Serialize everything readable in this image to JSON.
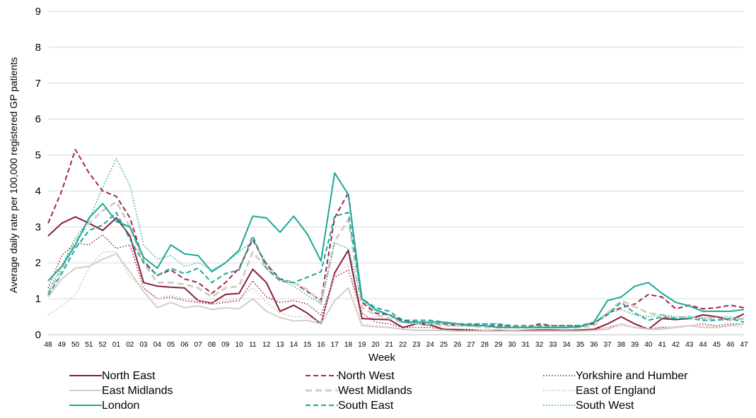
{
  "chart_data": {
    "type": "line",
    "title": "",
    "xlabel": "Week",
    "ylabel": "Average daily rate per 100,000 registered GP patients",
    "ylim": [
      0,
      9
    ],
    "yticks": [
      "0",
      "1",
      "2",
      "3",
      "4",
      "5",
      "6",
      "7",
      "8",
      "9"
    ],
    "grid": "horizontal",
    "legend_position": "bottom",
    "categories": [
      "48",
      "49",
      "50",
      "51",
      "52",
      "01",
      "02",
      "03",
      "04",
      "05",
      "06",
      "07",
      "08",
      "09",
      "10",
      "11",
      "12",
      "13",
      "14",
      "15",
      "16",
      "17",
      "18",
      "19",
      "20",
      "21",
      "22",
      "23",
      "24",
      "25",
      "26",
      "27",
      "28",
      "29",
      "30",
      "31",
      "32",
      "33",
      "34",
      "35",
      "36",
      "37",
      "38",
      "39",
      "40",
      "41",
      "42",
      "43",
      "44",
      "45",
      "46",
      "47"
    ],
    "series": [
      {
        "name": "North East",
        "color": "#8b1a3c",
        "width": 2,
        "dash": "",
        "values": [
          2.75,
          3.1,
          3.28,
          3.1,
          2.9,
          3.25,
          2.75,
          1.45,
          1.35,
          1.32,
          1.3,
          0.95,
          0.88,
          1.12,
          1.15,
          1.82,
          1.45,
          0.65,
          0.82,
          0.6,
          0.3,
          1.72,
          2.35,
          0.45,
          0.43,
          0.42,
          0.2,
          0.3,
          0.27,
          0.15,
          0.14,
          0.12,
          0.1,
          0.12,
          0.1,
          0.12,
          0.13,
          0.13,
          0.12,
          0.13,
          0.15,
          0.3,
          0.5,
          0.3,
          0.15,
          0.45,
          0.42,
          0.45,
          0.55,
          0.5,
          0.4,
          0.58
        ]
      },
      {
        "name": "North West",
        "color": "#a3274e",
        "width": 2,
        "dash": "7,4",
        "values": [
          3.1,
          4.0,
          5.15,
          4.5,
          4.0,
          3.85,
          3.25,
          2.05,
          1.65,
          1.8,
          1.55,
          1.45,
          1.15,
          1.45,
          1.85,
          2.65,
          1.95,
          1.55,
          1.45,
          1.2,
          0.95,
          3.25,
          3.95,
          0.9,
          0.6,
          0.55,
          0.4,
          0.35,
          0.3,
          0.3,
          0.25,
          0.28,
          0.25,
          0.25,
          0.22,
          0.2,
          0.3,
          0.25,
          0.25,
          0.25,
          0.3,
          0.6,
          0.75,
          0.85,
          1.12,
          1.05,
          0.72,
          0.82,
          0.72,
          0.75,
          0.82,
          0.75
        ]
      },
      {
        "name": "Yorkshire and Humber",
        "color": "#8b1a3c",
        "width": 1.5,
        "dash": "1.5,2.5",
        "values": [
          1.3,
          2.2,
          2.55,
          2.5,
          2.78,
          2.4,
          2.5,
          1.3,
          1.0,
          1.05,
          0.95,
          0.9,
          0.85,
          0.9,
          0.95,
          1.5,
          1.05,
          0.9,
          0.95,
          0.85,
          0.55,
          1.6,
          1.8,
          0.6,
          0.35,
          0.3,
          0.2,
          0.2,
          0.2,
          0.15,
          0.15,
          0.15,
          0.12,
          0.12,
          0.12,
          0.12,
          0.12,
          0.13,
          0.12,
          0.13,
          0.15,
          0.2,
          0.3,
          0.2,
          0.15,
          0.2,
          0.22,
          0.25,
          0.3,
          0.25,
          0.3,
          0.3
        ]
      },
      {
        "name": "East Midlands",
        "color": "#d4cfc2",
        "width": 2,
        "dash": "",
        "values": [
          1.05,
          1.55,
          1.85,
          1.9,
          2.1,
          2.25,
          1.75,
          1.2,
          0.75,
          0.9,
          0.75,
          0.8,
          0.7,
          0.75,
          0.72,
          1.0,
          0.65,
          0.48,
          0.38,
          0.4,
          0.3,
          0.95,
          1.3,
          0.25,
          0.22,
          0.2,
          0.15,
          0.12,
          0.12,
          0.12,
          0.1,
          0.1,
          0.1,
          0.1,
          0.1,
          0.1,
          0.1,
          0.1,
          0.1,
          0.1,
          0.12,
          0.15,
          0.3,
          0.2,
          0.15,
          0.15,
          0.2,
          0.25,
          0.2,
          0.2,
          0.25,
          0.3
        ]
      },
      {
        "name": "West Midlands",
        "color": "#d4cfc2",
        "width": 3,
        "dash": "9,5",
        "values": [
          1.15,
          1.8,
          2.6,
          3.1,
          3.45,
          3.7,
          3.0,
          2.0,
          1.45,
          1.45,
          1.4,
          1.3,
          1.05,
          1.3,
          1.35,
          2.3,
          1.85,
          1.5,
          1.45,
          1.25,
          0.9,
          2.6,
          3.2,
          0.75,
          0.55,
          0.45,
          0.35,
          0.3,
          0.3,
          0.25,
          0.25,
          0.25,
          0.2,
          0.2,
          0.2,
          0.2,
          0.2,
          0.2,
          0.2,
          0.2,
          0.25,
          0.6,
          0.95,
          0.78,
          0.6,
          0.55,
          0.45,
          0.5,
          0.45,
          0.42,
          0.42,
          0.45
        ]
      },
      {
        "name": "East of England",
        "color": "#d4cfc2",
        "width": 2.5,
        "dash": "1.5,3",
        "values": [
          0.55,
          0.8,
          1.1,
          1.85,
          2.3,
          2.3,
          1.6,
          1.3,
          1.0,
          1.1,
          1.0,
          0.95,
          0.9,
          0.95,
          1.0,
          1.3,
          0.9,
          0.6,
          0.5,
          0.5,
          0.35,
          1.65,
          1.95,
          0.3,
          0.25,
          0.2,
          0.15,
          0.12,
          0.12,
          0.12,
          0.1,
          0.1,
          0.1,
          0.1,
          0.1,
          0.1,
          0.1,
          0.1,
          0.1,
          0.1,
          0.12,
          0.2,
          0.25,
          0.2,
          0.2,
          0.2,
          0.2,
          0.25,
          0.25,
          0.22,
          0.25,
          0.22
        ]
      },
      {
        "name": "London",
        "color": "#1aa898",
        "width": 2,
        "dash": "",
        "values": [
          1.5,
          1.9,
          2.5,
          3.25,
          3.65,
          3.15,
          3.0,
          2.15,
          1.85,
          2.5,
          2.25,
          2.2,
          1.75,
          2.0,
          2.35,
          3.3,
          3.25,
          2.85,
          3.3,
          2.8,
          2.05,
          4.5,
          3.9,
          1.0,
          0.7,
          0.55,
          0.35,
          0.35,
          0.35,
          0.35,
          0.3,
          0.25,
          0.25,
          0.2,
          0.2,
          0.2,
          0.2,
          0.2,
          0.2,
          0.22,
          0.35,
          0.95,
          1.05,
          1.35,
          1.45,
          1.15,
          0.9,
          0.8,
          0.65,
          0.65,
          0.65,
          0.7
        ]
      },
      {
        "name": "South East",
        "color": "#1aa898",
        "width": 2,
        "dash": "7,4",
        "values": [
          1.1,
          1.7,
          2.4,
          2.9,
          3.05,
          3.4,
          2.65,
          2.0,
          1.65,
          1.85,
          1.7,
          1.85,
          1.45,
          1.7,
          1.8,
          2.75,
          1.85,
          1.5,
          1.45,
          1.6,
          1.75,
          3.3,
          3.4,
          1.0,
          0.75,
          0.65,
          0.4,
          0.4,
          0.4,
          0.35,
          0.3,
          0.3,
          0.3,
          0.3,
          0.25,
          0.25,
          0.25,
          0.25,
          0.25,
          0.25,
          0.35,
          0.55,
          0.9,
          0.6,
          0.4,
          0.5,
          0.45,
          0.45,
          0.4,
          0.4,
          0.45,
          0.35
        ]
      },
      {
        "name": "South West",
        "color": "#1aa898",
        "width": 1.5,
        "dash": "1.5,2.5",
        "values": [
          1.2,
          1.9,
          2.7,
          3.2,
          4.1,
          4.9,
          4.15,
          2.5,
          2.1,
          2.2,
          1.9,
          2.0,
          1.8,
          2.0,
          2.3,
          2.6,
          2.0,
          1.55,
          1.35,
          1.1,
          0.85,
          2.55,
          2.4,
          0.95,
          0.65,
          0.55,
          0.35,
          0.3,
          0.3,
          0.3,
          0.3,
          0.3,
          0.3,
          0.3,
          0.2,
          0.2,
          0.22,
          0.2,
          0.2,
          0.22,
          0.35,
          0.6,
          0.7,
          0.55,
          0.5,
          0.55,
          0.5,
          0.5,
          0.45,
          0.5,
          0.5,
          0.42
        ]
      }
    ]
  }
}
